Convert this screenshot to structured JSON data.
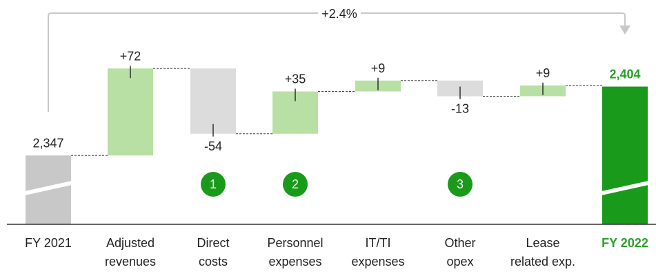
{
  "chart_data": {
    "type": "waterfall",
    "categories": [
      [
        "FY 2021"
      ],
      [
        "Adjusted",
        "revenues"
      ],
      [
        "Direct",
        "costs"
      ],
      [
        "Personnel",
        "expenses"
      ],
      [
        "IT/TI",
        "expenses"
      ],
      [
        "Other",
        "opex"
      ],
      [
        "Lease",
        "related exp."
      ],
      [
        "FY 2022"
      ]
    ],
    "kinds": [
      "total",
      "delta",
      "delta",
      "delta",
      "delta",
      "delta",
      "delta",
      "total"
    ],
    "values": [
      2347,
      72,
      -54,
      35,
      9,
      -13,
      9,
      2404
    ],
    "value_labels": [
      "2,347",
      "+72",
      "-54",
      "+35",
      "+9",
      "-13",
      "+9",
      "2,404"
    ],
    "change_annotation": "+2.4%",
    "badges": [
      {
        "category_index": 2,
        "text": "1"
      },
      {
        "category_index": 3,
        "text": "2"
      },
      {
        "category_index": 5,
        "text": "3"
      }
    ],
    "axis_break": true,
    "colors": {
      "total_start": "#c8c8c8",
      "increase": "#b8e0a4",
      "decrease": "#dcdcdc",
      "total_end": "#1a9a1a",
      "badge": "#1a9a1a",
      "highlight_text": "#2aa02a",
      "connector": "#444444",
      "bracket": "#c8c8c8"
    }
  }
}
